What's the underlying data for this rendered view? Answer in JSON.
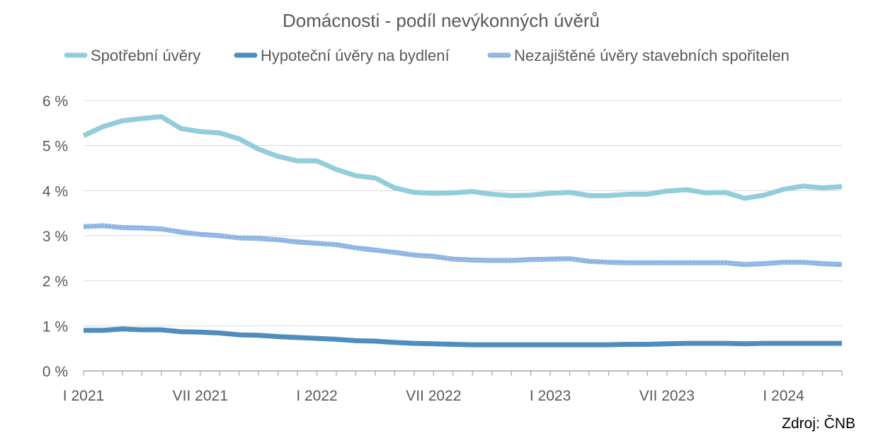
{
  "chart_data": {
    "type": "line",
    "title": "Domácnosti - podíl nevýkonných úvěrů",
    "source": "Zdroj: ČNB",
    "ylim": [
      0,
      6
    ],
    "yticks": [
      "0 %",
      "1 %",
      "2 %",
      "3 %",
      "4 %",
      "5 %",
      "6 %"
    ],
    "xticks": [
      {
        "index": 0,
        "label": "I 2021"
      },
      {
        "index": 6,
        "label": "VII 2021"
      },
      {
        "index": 12,
        "label": "I 2022"
      },
      {
        "index": 18,
        "label": "VII 2022"
      },
      {
        "index": 24,
        "label": "I 2023"
      },
      {
        "index": 30,
        "label": "VII 2023"
      },
      {
        "index": 36,
        "label": "I 2024"
      }
    ],
    "n_points": 40,
    "grid": true,
    "legend_position": "top",
    "series": [
      {
        "name": "Spotřební úvěry",
        "color": "#92CDDC",
        "style": "solid",
        "values": [
          5.22,
          5.42,
          5.55,
          5.6,
          5.64,
          5.38,
          5.31,
          5.28,
          5.15,
          4.92,
          4.76,
          4.66,
          4.66,
          4.47,
          4.33,
          4.28,
          4.06,
          3.96,
          3.94,
          3.95,
          3.98,
          3.92,
          3.89,
          3.9,
          3.94,
          3.96,
          3.89,
          3.89,
          3.92,
          3.92,
          3.99,
          4.02,
          3.95,
          3.96,
          3.83,
          3.9,
          4.03,
          4.1,
          4.06,
          4.09
        ]
      },
      {
        "name": "Hypoteční úvěry na bydlení",
        "color": "#4F8DBE",
        "style": "solid",
        "values": [
          0.9,
          0.9,
          0.93,
          0.91,
          0.91,
          0.87,
          0.86,
          0.84,
          0.8,
          0.79,
          0.76,
          0.74,
          0.72,
          0.7,
          0.67,
          0.66,
          0.63,
          0.61,
          0.6,
          0.59,
          0.58,
          0.58,
          0.58,
          0.58,
          0.58,
          0.58,
          0.58,
          0.58,
          0.59,
          0.59,
          0.6,
          0.61,
          0.61,
          0.61,
          0.6,
          0.61,
          0.61,
          0.61,
          0.61,
          0.61
        ]
      },
      {
        "name": "Nezajištěné úvěry stavebních spořitelen",
        "color": "#8DB4E2",
        "style": "textured",
        "values": [
          3.2,
          3.22,
          3.18,
          3.17,
          3.15,
          3.08,
          3.03,
          3.0,
          2.95,
          2.94,
          2.91,
          2.86,
          2.83,
          2.8,
          2.73,
          2.68,
          2.63,
          2.57,
          2.54,
          2.48,
          2.46,
          2.45,
          2.45,
          2.47,
          2.48,
          2.49,
          2.43,
          2.41,
          2.4,
          2.4,
          2.4,
          2.4,
          2.4,
          2.4,
          2.36,
          2.38,
          2.41,
          2.41,
          2.38,
          2.36
        ]
      }
    ]
  }
}
